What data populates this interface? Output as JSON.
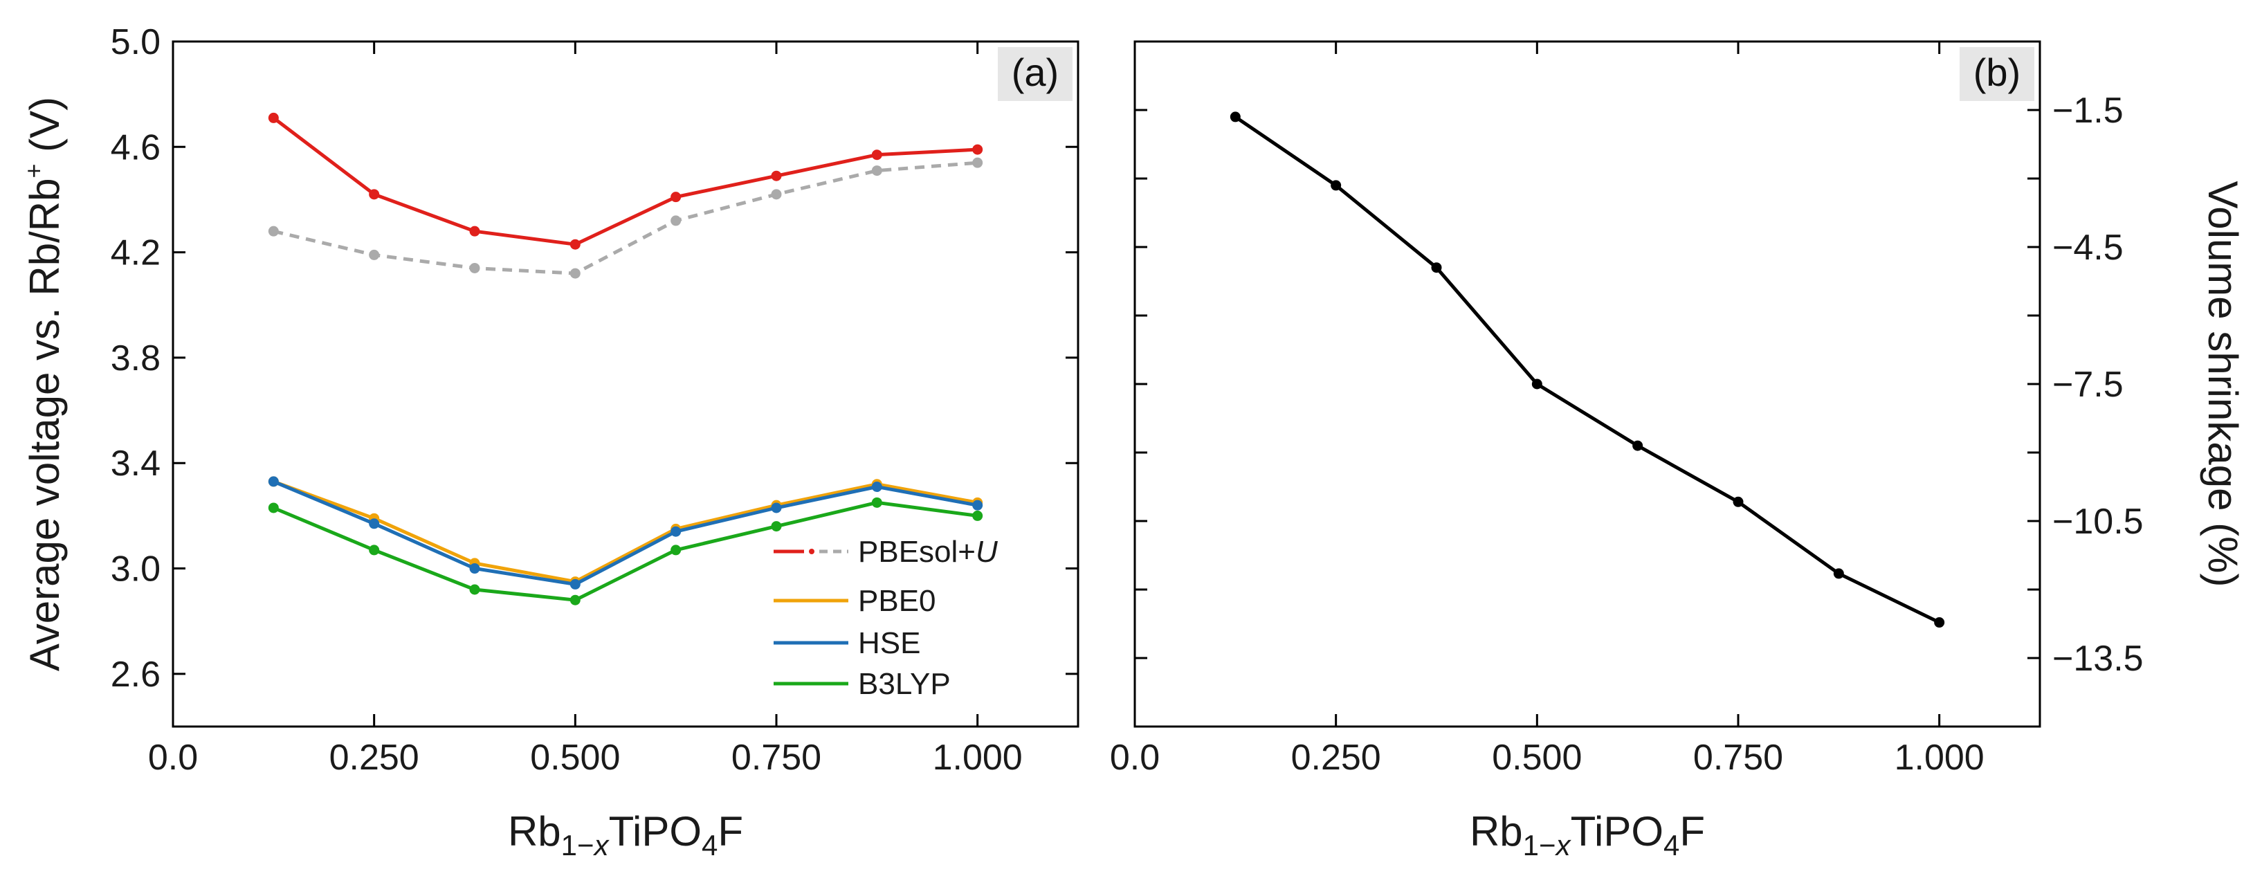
{
  "chart_data": [
    {
      "type": "line",
      "panel_label": "(a)",
      "xlabel": "Rb1−xTiPO4F",
      "ylabel": "Average voltage vs. Rb/Rb⁺ (V)",
      "xlim": [
        0.0,
        1.125
      ],
      "ylim": [
        2.4,
        5.0
      ],
      "xticks": [
        0.0,
        0.25,
        0.5,
        0.75,
        1.0
      ],
      "xtick_labels": [
        "0.0",
        "0.250",
        "0.500",
        "0.750",
        "1.000"
      ],
      "yticks": [
        2.6,
        3.0,
        3.4,
        3.8,
        4.2,
        4.6,
        5.0
      ],
      "ytick_labels": [
        "2.6",
        "3.0",
        "3.4",
        "3.8",
        "4.2",
        "4.6",
        "5.0"
      ],
      "legend_position": "lower-right",
      "x": [
        0.125,
        0.25,
        0.375,
        0.5,
        0.625,
        0.75,
        0.875,
        1.0
      ],
      "series": [
        {
          "name": "PBEsol+U",
          "style": "solid",
          "color": "#e0201b",
          "values": [
            4.71,
            4.42,
            4.28,
            4.23,
            4.41,
            4.49,
            4.57,
            4.59
          ]
        },
        {
          "name": "",
          "style": "dashed",
          "color": "#aaaaaa",
          "values": [
            4.28,
            4.19,
            4.14,
            4.12,
            4.32,
            4.42,
            4.51,
            4.54
          ]
        },
        {
          "name": "PBE0",
          "style": "solid",
          "color": "#f0a30a",
          "values": [
            3.33,
            3.19,
            3.02,
            2.95,
            3.15,
            3.24,
            3.32,
            3.25
          ]
        },
        {
          "name": "HSE",
          "style": "solid",
          "color": "#1f6fb5",
          "values": [
            3.33,
            3.17,
            3.0,
            2.94,
            3.14,
            3.23,
            3.31,
            3.24
          ]
        },
        {
          "name": "B3LYP",
          "style": "solid",
          "color": "#1aa81a",
          "values": [
            3.23,
            3.07,
            2.92,
            2.88,
            3.07,
            3.16,
            3.25,
            3.2
          ]
        }
      ]
    },
    {
      "type": "line",
      "panel_label": "(b)",
      "xlabel": "Rb1−xTiPO4F",
      "ylabel": "Volume shrinkage (%)",
      "xlim": [
        0.0,
        1.125
      ],
      "ylim": [
        -15.0,
        0.0
      ],
      "xticks": [
        0.0,
        0.25,
        0.5,
        0.75,
        1.0
      ],
      "xtick_labels": [
        "0.0",
        "0.250",
        "0.500",
        "0.750",
        "1.000"
      ],
      "yticks": [
        -1.5,
        -4.5,
        -7.5,
        -10.5,
        -13.5
      ],
      "ytick_labels": [
        "−1.5",
        "−4.5",
        "−7.5",
        "−10.5",
        "−13.5"
      ],
      "x": [
        0.125,
        0.25,
        0.375,
        0.5,
        0.625,
        0.75,
        0.875,
        1.0
      ],
      "series": [
        {
          "name": "",
          "style": "solid",
          "color": "#000000",
          "values": [
            -1.65,
            -3.15,
            -4.95,
            -7.5,
            -8.85,
            -10.08,
            -11.65,
            -12.72
          ]
        }
      ]
    }
  ]
}
